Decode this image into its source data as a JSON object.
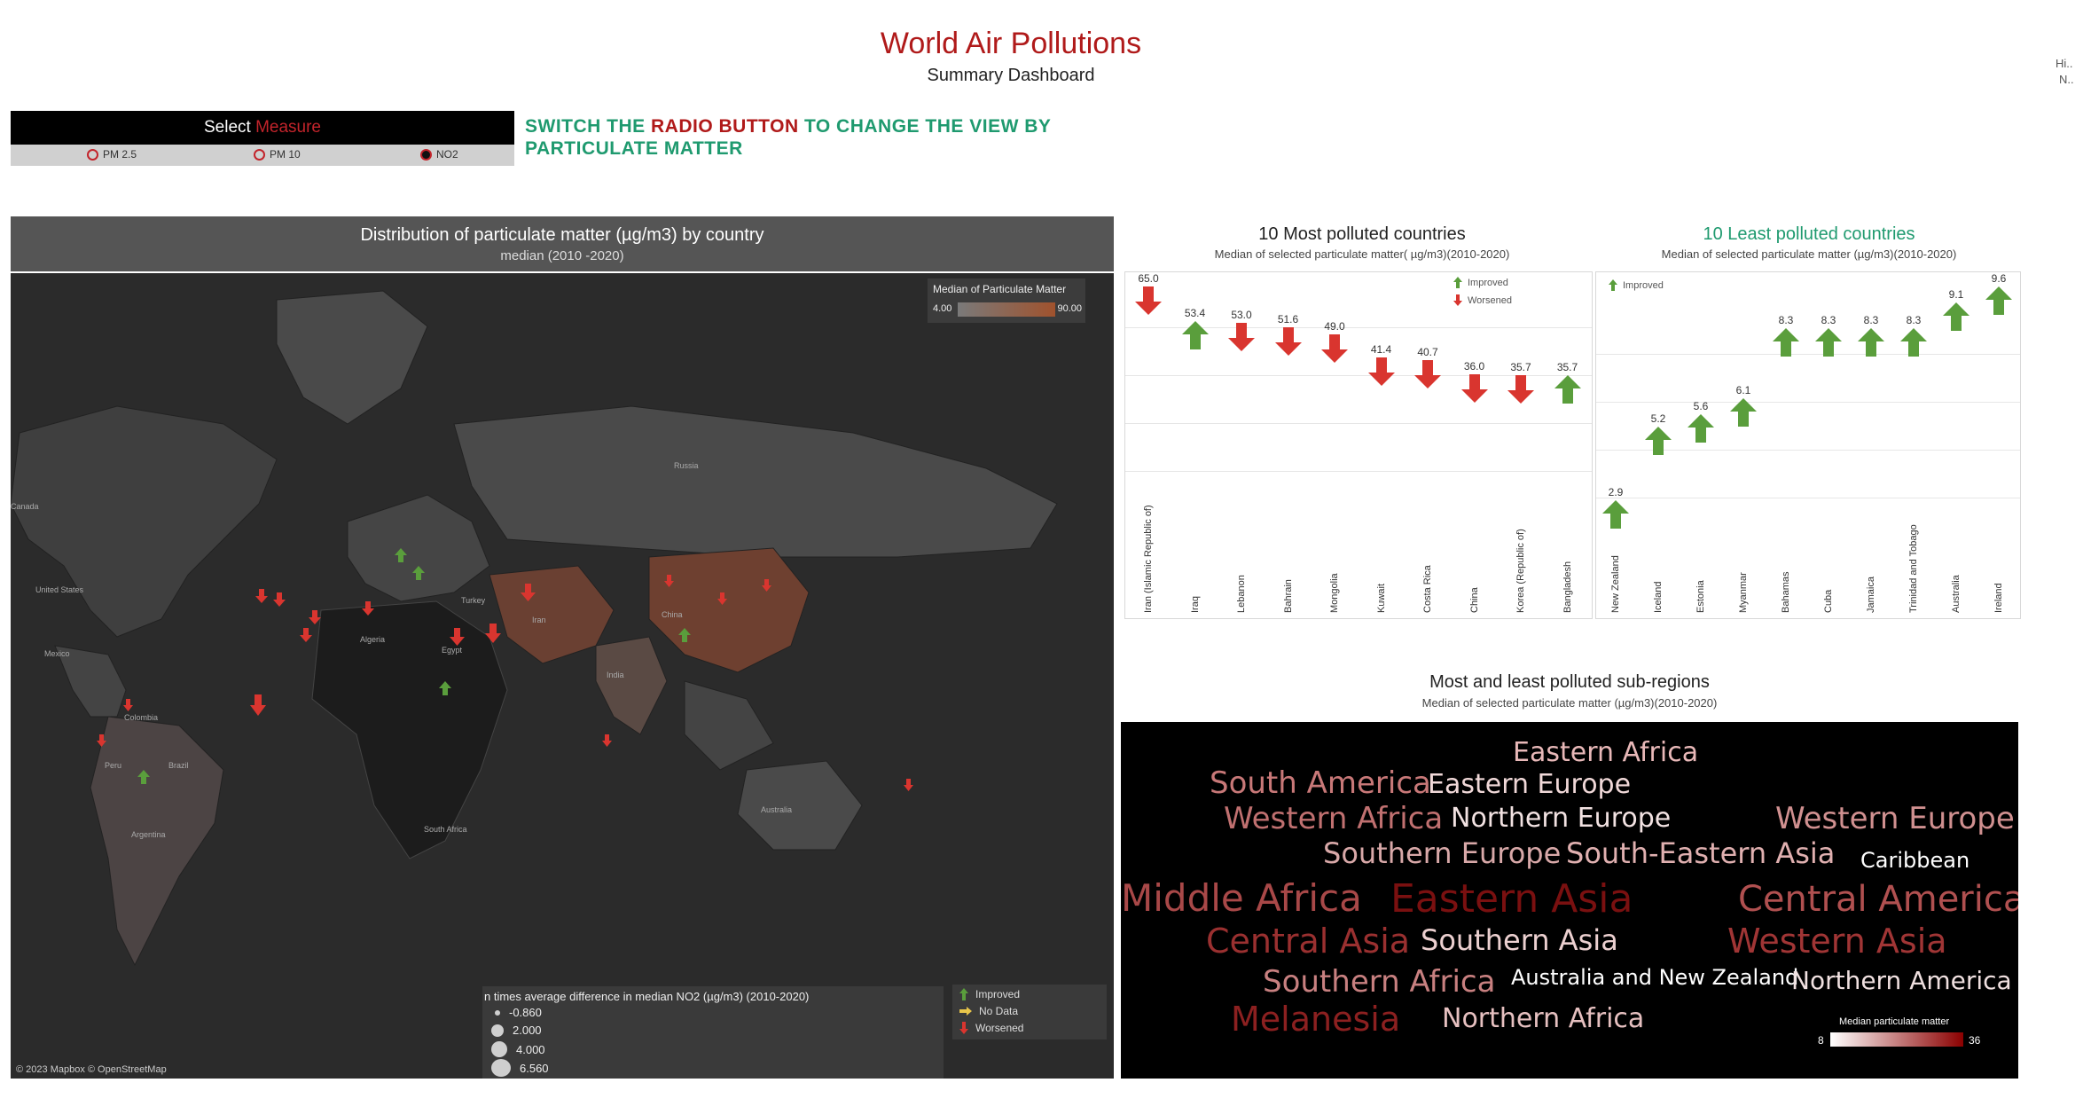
{
  "dashboard": {
    "title": "World Air Pollutions",
    "subtitle": "Summary Dashboard",
    "corner_line1": "Hi..",
    "corner_line2": "N.."
  },
  "measure": {
    "label_prefix": "Select ",
    "label_highlight": "Measure",
    "options": [
      "PM 2.5",
      "PM 10",
      "NO2"
    ],
    "selected": "NO2"
  },
  "instruction": {
    "part1": "SWITCH THE ",
    "part2": "RADIO BUTTON",
    "part3": " TO CHANGE THE VIEW BY PARTICULATE MATTER"
  },
  "map": {
    "title": "Distribution of particulate matter (µg/m3) by country",
    "subtitle": "median (2010 -2020)",
    "color_legend_title": "Median of Particulate Matter",
    "color_legend_min": "4.00",
    "color_legend_max": "90.00",
    "size_legend_title": "n times average difference in median NO2 (µg/m3) (2010-2020)",
    "size_legend_items": [
      "-0.860",
      "2.000",
      "4.000",
      "6.560"
    ],
    "status_legend_items": [
      "Improved",
      "No Data",
      "Worsened"
    ],
    "credit": "© 2023 Mapbox © OpenStreetMap",
    "labels": {
      "canada": "Canada",
      "us": "United States",
      "mexico": "Mexico",
      "colombia": "Colombia",
      "peru": "Peru",
      "brazil": "Brazil",
      "argentina": "Argentina",
      "russia": "Russia",
      "china": "China",
      "algeria": "Algeria",
      "egypt": "Egypt",
      "turkey": "Turkey",
      "iran": "Iran",
      "india": "India",
      "australia": "Australia",
      "south_africa": "South Africa"
    },
    "colors": {
      "improved": "#5a9e3c",
      "no_data": "#e8c54a",
      "worsened": "#d9352f"
    }
  },
  "most_polluted": {
    "title": "10 Most polluted countries",
    "subtitle": "Median of selected particulate matter( µg/m3)(2010-2020)",
    "legend_improved": "Improved",
    "legend_worsened": "Worsened",
    "items": [
      {
        "country": "Iran (Islamic Republic of)",
        "value": "65.0",
        "status": "worsened"
      },
      {
        "country": "Iraq",
        "value": "53.4",
        "status": "improved"
      },
      {
        "country": "Lebanon",
        "value": "53.0",
        "status": "worsened"
      },
      {
        "country": "Bahrain",
        "value": "51.6",
        "status": "worsened"
      },
      {
        "country": "Mongolia",
        "value": "49.0",
        "status": "worsened"
      },
      {
        "country": "Kuwait",
        "value": "41.4",
        "status": "worsened"
      },
      {
        "country": "Costa Rica",
        "value": "40.7",
        "status": "worsened"
      },
      {
        "country": "China",
        "value": "36.0",
        "status": "worsened"
      },
      {
        "country": "Korea (Republic of)",
        "value": "35.7",
        "status": "worsened"
      },
      {
        "country": "Bangladesh",
        "value": "35.7",
        "status": "improved"
      }
    ]
  },
  "least_polluted": {
    "title": "10 Least polluted countries",
    "subtitle": "Median of selected particulate matter (µg/m3)(2010-2020)",
    "legend_improved": "Improved",
    "items": [
      {
        "country": "New Zealand",
        "value": "2.9",
        "status": "improved"
      },
      {
        "country": "Iceland",
        "value": "5.2",
        "status": "improved"
      },
      {
        "country": "Estonia",
        "value": "5.6",
        "status": "improved"
      },
      {
        "country": "Myanmar",
        "value": "6.1",
        "status": "improved"
      },
      {
        "country": "Bahamas",
        "value": "8.3",
        "status": "improved"
      },
      {
        "country": "Cuba",
        "value": "8.3",
        "status": "improved"
      },
      {
        "country": "Jamaica",
        "value": "8.3",
        "status": "improved"
      },
      {
        "country": "Trinidad and Tobago",
        "value": "8.3",
        "status": "improved"
      },
      {
        "country": "Australia",
        "value": "9.1",
        "status": "improved"
      },
      {
        "country": "Ireland",
        "value": "9.6",
        "status": "improved"
      }
    ]
  },
  "subregions": {
    "title": "Most and least polluted sub-regions",
    "subtitle": "Median of selected particulate matter (µg/m3)(2010-2020)",
    "legend_title": "Median particulate matter",
    "legend_min": "8",
    "legend_max": "36",
    "words": [
      {
        "text": "Eastern Africa",
        "color": "#e8b8b8"
      },
      {
        "text": "South America",
        "color": "#c87878"
      },
      {
        "text": "Eastern Europe",
        "color": "#f0d8d8"
      },
      {
        "text": "Western Africa",
        "color": "#c07070"
      },
      {
        "text": "Northern Europe",
        "color": "#f2e2e2"
      },
      {
        "text": "Western Europe",
        "color": "#d09090"
      },
      {
        "text": "Southern Europe",
        "color": "#d8a8a8"
      },
      {
        "text": "South-Eastern Asia",
        "color": "#e0b0b0"
      },
      {
        "text": "Caribbean",
        "color": "#ffffff"
      },
      {
        "text": "Middle Africa",
        "color": "#a84848"
      },
      {
        "text": "Eastern Asia",
        "color": "#7a1010"
      },
      {
        "text": "Central America",
        "color": "#b05050"
      },
      {
        "text": "Central Asia",
        "color": "#9a3030"
      },
      {
        "text": "Southern Asia",
        "color": "#ecd0d0"
      },
      {
        "text": "Western Asia",
        "color": "#a03535"
      },
      {
        "text": "Southern Africa",
        "color": "#c88080"
      },
      {
        "text": "Australia and New Zealand",
        "color": "#ffffff"
      },
      {
        "text": "Northern America",
        "color": "#f0e0e0"
      },
      {
        "text": "Melanesia",
        "color": "#8c2020"
      },
      {
        "text": "Northern Africa",
        "color": "#e6c0c0"
      }
    ]
  }
}
